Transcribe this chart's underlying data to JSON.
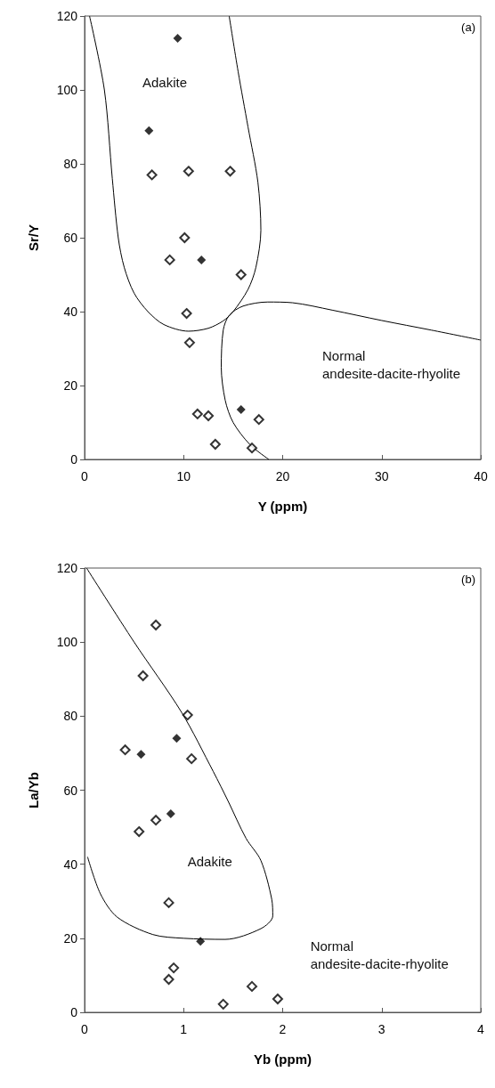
{
  "chart_data": [
    {
      "type": "scatter",
      "xlabel": "Y (ppm)",
      "ylabel": "Sr/Y",
      "xlim": [
        0,
        40
      ],
      "xticks": [
        0,
        10,
        20,
        30,
        40
      ],
      "ylim": [
        0,
        120
      ],
      "yticks": [
        0,
        20,
        40,
        60,
        80,
        100,
        120
      ],
      "grid": false,
      "marker": "diamond",
      "annotations": [
        "(a)",
        "Adakite",
        "Normal\nandesite-dacite-rhyolite"
      ],
      "series": [
        {
          "type": "scatter",
          "color": "#000000",
          "x": [
            9.4,
            6.5,
            11.8,
            15.8
          ],
          "values": [
            114,
            89,
            54,
            13.5
          ]
        },
        {
          "type": "scatter",
          "color": "#ffffff",
          "x": [
            6.8,
            10.5,
            14.7,
            10.1,
            8.6,
            15.8,
            10.3,
            10.6,
            11.4,
            12.5,
            17.6,
            13.2,
            16.9
          ],
          "values": [
            77,
            78,
            78,
            60,
            54,
            50,
            39.5,
            31.6,
            12.3,
            11.8,
            10.8,
            4.1,
            3.1
          ]
        },
        {
          "type": "line",
          "color": "#000000",
          "marker": "none",
          "x": [
            0.5,
            2,
            2.8,
            3.4,
            4,
            5,
            6.4,
            8,
            10.5,
            12.5,
            14,
            15,
            16.5,
            17.3,
            17.8,
            17.5,
            16.5,
            15.5,
            14.6
          ],
          "values": [
            120,
            100,
            76,
            60,
            52,
            45,
            40,
            36.5,
            34.7,
            35.5,
            37.5,
            40,
            46,
            52,
            62,
            75,
            90,
            105,
            120
          ]
        },
        {
          "type": "line",
          "color": "#000000",
          "marker": "none",
          "x": [
            18.6,
            16.7,
            15,
            14.2,
            13.8,
            14,
            14.6,
            16,
            18.5,
            21,
            25,
            30,
            35,
            40
          ],
          "values": [
            0,
            4,
            10,
            16,
            25,
            35,
            39,
            41.5,
            42.6,
            42.4,
            40.4,
            37.6,
            35,
            32.3
          ]
        }
      ]
    },
    {
      "type": "scatter",
      "xlabel": "Yb (ppm)",
      "ylabel": "La/Yb",
      "xlim": [
        0,
        4
      ],
      "xticks": [
        0,
        1,
        2,
        3,
        4
      ],
      "ylim": [
        0,
        120
      ],
      "yticks": [
        0,
        20,
        40,
        60,
        80,
        100,
        120
      ],
      "grid": false,
      "marker": "diamond",
      "annotations": [
        "(b)",
        "Adakite",
        "Normal\nandesite-dacite-rhyolite"
      ],
      "series": [
        {
          "type": "scatter",
          "color": "#000000",
          "x": [
            0.93,
            0.57,
            0.87,
            1.17
          ],
          "values": [
            74,
            69.7,
            53.6,
            19.2
          ]
        },
        {
          "type": "scatter",
          "color": "#ffffff",
          "x": [
            0.72,
            0.59,
            1.04,
            0.41,
            1.08,
            0.72,
            0.55,
            0.85,
            0.9,
            0.85,
            1.69,
            1.95,
            1.4
          ],
          "values": [
            104.6,
            90.9,
            80.3,
            70.9,
            68.5,
            51.9,
            48.8,
            29.6,
            12,
            8.9,
            7,
            3.6,
            2.2
          ]
        },
        {
          "type": "line",
          "color": "#000000",
          "marker": "none",
          "x": [
            0.02,
            0.5,
            0.98,
            1.3,
            1.45,
            1.63,
            1.78,
            1.89,
            1.9,
            1.78,
            1.42,
            1.0,
            0.69,
            0.33,
            0.16,
            0.03
          ],
          "values": [
            120,
            100,
            81,
            65,
            57,
            47,
            41,
            30.5,
            26,
            22.6,
            19.7,
            20,
            21,
            25.7,
            32,
            42
          ]
        }
      ]
    }
  ]
}
